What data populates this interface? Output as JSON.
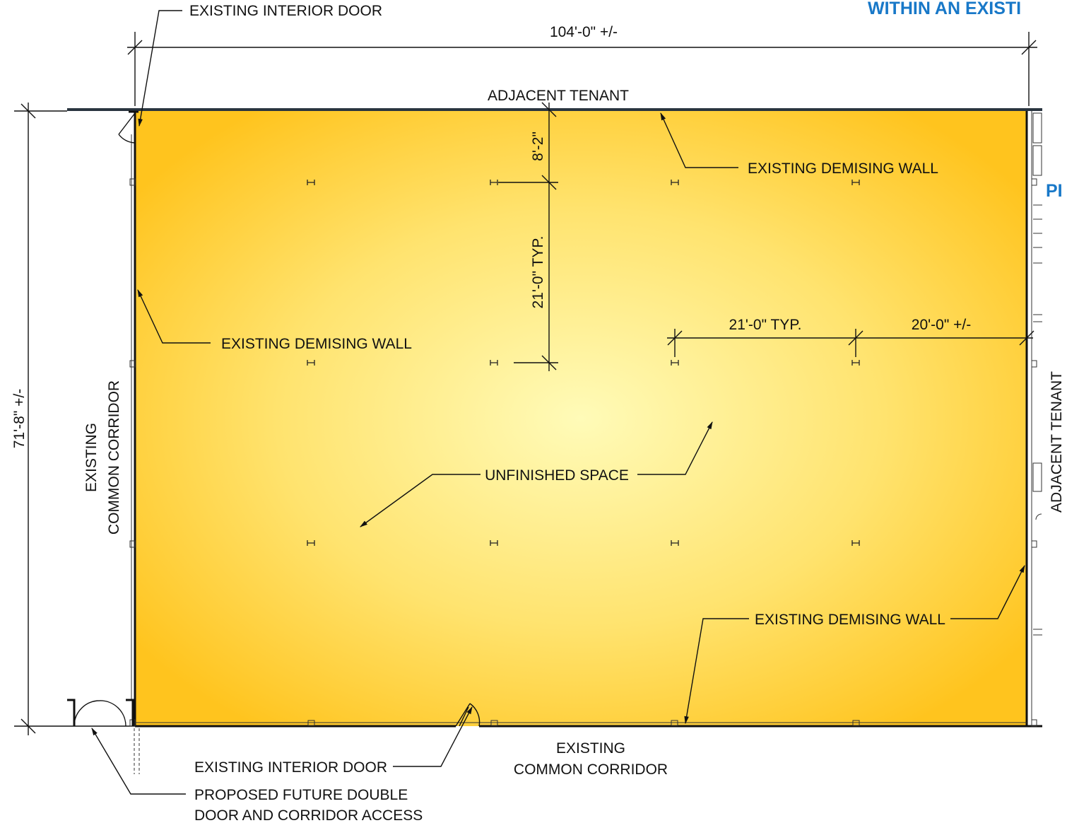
{
  "titles": {
    "top_right": "WITHIN AN EXISTI",
    "right_side": "PI"
  },
  "labels": {
    "existing_interior_door_top": "EXISTING INTERIOR DOOR",
    "adjacent_tenant_top": "ADJACENT TENANT",
    "existing_demising_wall_top": "EXISTING DEMISING WALL",
    "existing_demising_wall_left": "EXISTING DEMISING WALL",
    "existing_demising_wall_bottom": "EXISTING DEMISING WALL",
    "unfinished_space": "UNFINISHED SPACE",
    "existing_common_corridor_left_1": "EXISTING",
    "existing_common_corridor_left_2": "COMMON CORRIDOR",
    "adjacent_tenant_right": "ADJACENT TENANT",
    "existing_common_corridor_bottom_1": "EXISTING",
    "existing_common_corridor_bottom_2": "COMMON CORRIDOR",
    "existing_interior_door_bottom": "EXISTING INTERIOR DOOR",
    "proposed_door_1": "PROPOSED FUTURE DOUBLE",
    "proposed_door_2": "DOOR AND CORRIDOR ACCESS"
  },
  "dimensions": {
    "overall_width": "104'-0\" +/-",
    "overall_depth": "71'-8\" +/-",
    "top_offset": "8'-2\"",
    "column_spacing_vertical": "21'-0\" TYP.",
    "column_spacing_horizontal": "21'-0\" TYP.",
    "end_bay": "20'-0\" +/-"
  },
  "colors": {
    "space_center": "#fffbb8",
    "space_edge": "#ffc41e",
    "title_blue": "#1878c8",
    "linework": "#111111"
  }
}
